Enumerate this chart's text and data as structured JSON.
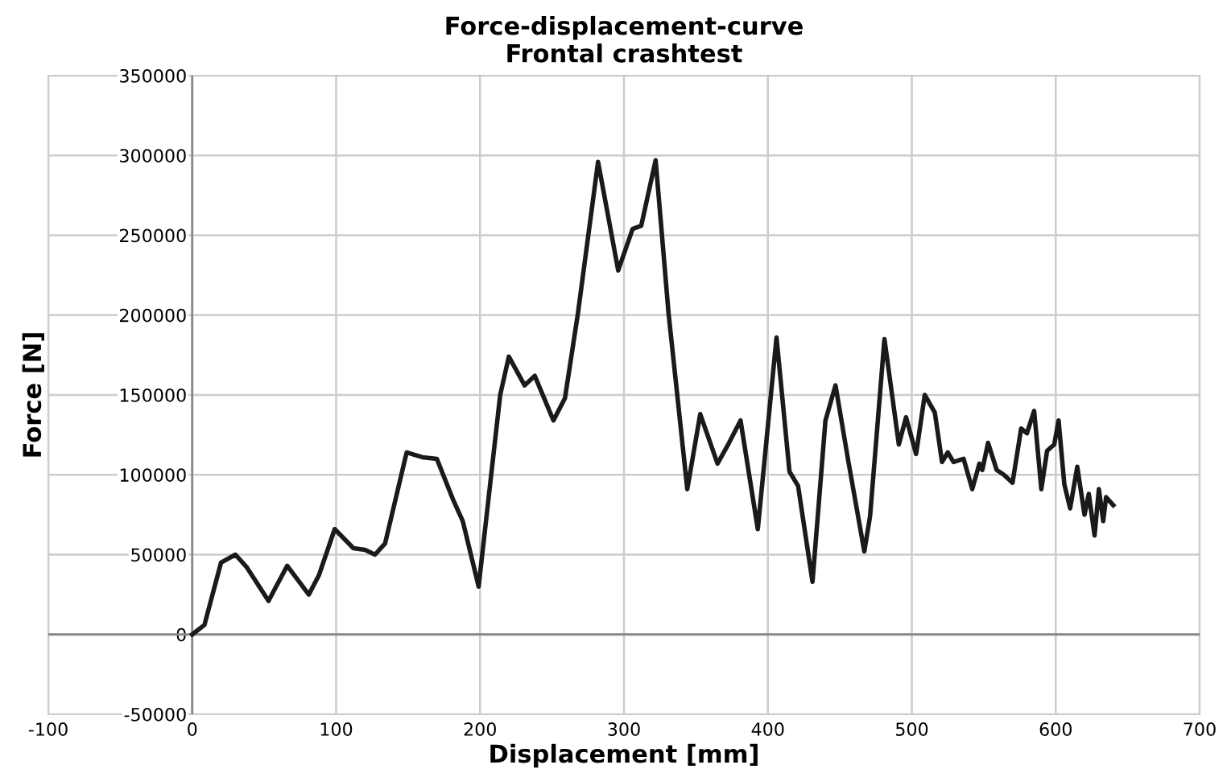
{
  "chart_data": {
    "type": "line",
    "title": "Force-displacement-curve\nFrontal crashtest",
    "xlabel": "Displacement [mm]",
    "ylabel": "Force [N]",
    "x": [
      0,
      8.5,
      20,
      30,
      38,
      53,
      66,
      81,
      88,
      99,
      112,
      120,
      127,
      134,
      149,
      160,
      170,
      181,
      188,
      199,
      214,
      220,
      231,
      238,
      251,
      259,
      268,
      282,
      296,
      306,
      312,
      322,
      331,
      344,
      353,
      365,
      373,
      381,
      393,
      406,
      415,
      421,
      431,
      440,
      447,
      456,
      467,
      471,
      481,
      491,
      496,
      503,
      509,
      516,
      521,
      525,
      529,
      536,
      542,
      547,
      549,
      553,
      559,
      564,
      570,
      576,
      580,
      585,
      590,
      594,
      599,
      602,
      606,
      610,
      615,
      620,
      623,
      627,
      630,
      633,
      635,
      640
    ],
    "series": [
      {
        "color": "#1a1a1a",
        "values": [
          0,
          6000,
          45000,
          50000,
          42000,
          21000,
          43000,
          25000,
          37000,
          66000,
          54000,
          53000,
          50000,
          57000,
          114000,
          111000,
          110000,
          85000,
          71000,
          30000,
          150000,
          174000,
          156000,
          162000,
          134000,
          148000,
          201000,
          296000,
          228000,
          254000,
          256000,
          297000,
          201000,
          91000,
          138000,
          107000,
          120000,
          134000,
          66000,
          186000,
          102000,
          93000,
          33000,
          134000,
          156000,
          108000,
          52000,
          74000,
          185000,
          119000,
          136000,
          113000,
          150000,
          139000,
          108000,
          114000,
          108000,
          110000,
          91000,
          107000,
          103000,
          120000,
          103000,
          100000,
          95000,
          129000,
          126000,
          140000,
          91000,
          115000,
          119000,
          134000,
          94000,
          79000,
          105000,
          75000,
          88000,
          62000,
          91000,
          71000,
          86000,
          81000
        ]
      }
    ],
    "xlim": [
      -100,
      700
    ],
    "xticks": [
      -100,
      0,
      100,
      200,
      300,
      400,
      500,
      600,
      700
    ],
    "ylim": [
      -50000,
      350000
    ],
    "yticks": [
      -50000,
      0,
      50000,
      100000,
      150000,
      200000,
      250000,
      300000,
      350000
    ],
    "grid": true,
    "legend": false,
    "marker": "none",
    "line_style": "solid"
  }
}
